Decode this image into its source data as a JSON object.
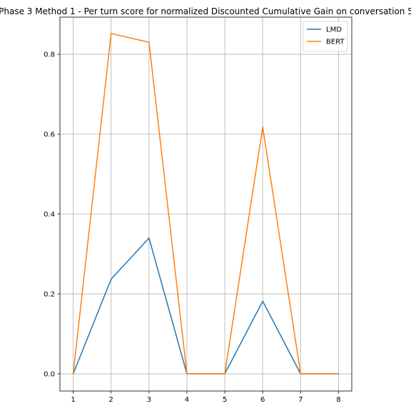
{
  "chart_data": {
    "type": "line",
    "title": "Phase 3 Method 1 - Per turn score for normalized Discounted Cumulative Gain on conversation 5",
    "xlabel": "",
    "ylabel": "",
    "x": [
      1,
      2,
      3,
      4,
      5,
      6,
      7,
      8
    ],
    "xlim": [
      0.65,
      8.35
    ],
    "ylim": [
      -0.043,
      0.893
    ],
    "xticks": [
      "1",
      "2",
      "3",
      "4",
      "5",
      "6",
      "7",
      "8"
    ],
    "yticks": [
      "0.0",
      "0.2",
      "0.4",
      "0.6",
      "0.8"
    ],
    "grid": true,
    "legend_position": "top-right",
    "series": [
      {
        "name": "LMD",
        "color": "#1f77b4",
        "values": [
          0.0,
          0.237,
          0.34,
          0.0,
          0.0,
          0.182,
          0.0,
          0.0
        ]
      },
      {
        "name": "BERT",
        "color": "#ff7f0e",
        "values": [
          0.0,
          0.852,
          0.83,
          0.0,
          0.0,
          0.618,
          0.0,
          0.0
        ]
      }
    ]
  }
}
